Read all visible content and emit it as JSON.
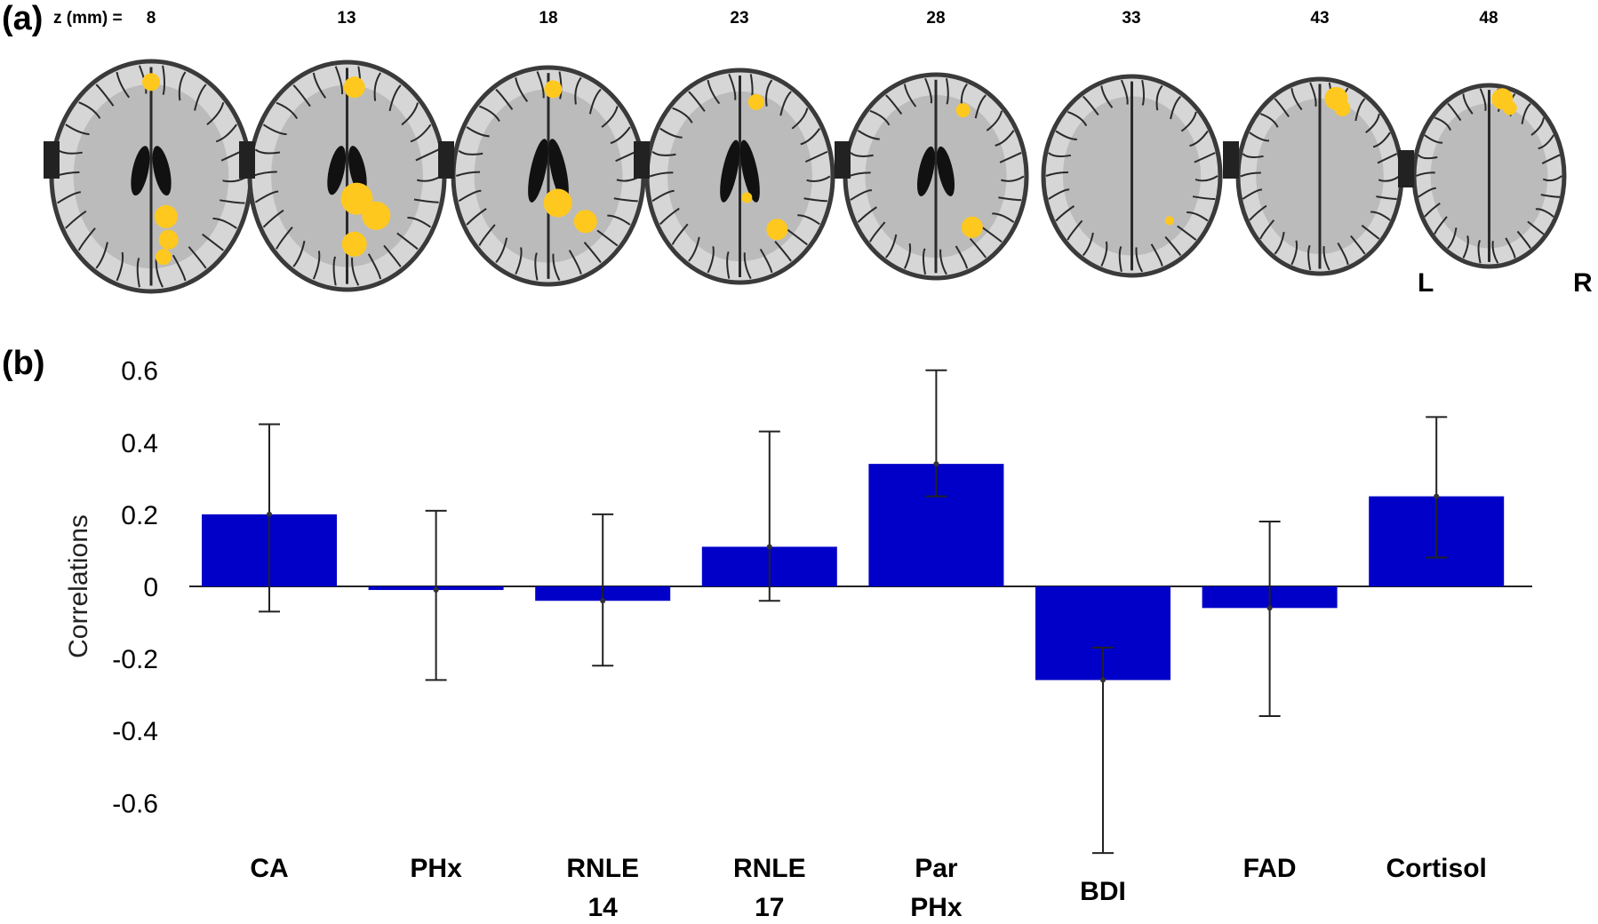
{
  "panel_a": {
    "label": "(a)",
    "z_unit_label": "z (mm) =",
    "slices": [
      "8",
      "13",
      "18",
      "23",
      "28",
      "33",
      "43",
      "48"
    ],
    "orientation_left": "L",
    "orientation_right": "R",
    "colors": {
      "activation": "#ffc81e",
      "brain_gray": "#a6a6a6",
      "sulci": "#2a2a2a"
    }
  },
  "panel_b": {
    "label": "(b)"
  },
  "chart_data": {
    "type": "bar",
    "categories": [
      "CA",
      "PHx",
      "RNLE 14",
      "RNLE 17",
      "Par PHx",
      "BDI",
      "FAD",
      "Cortisol"
    ],
    "category_lines": [
      [
        "CA"
      ],
      [
        "PHx"
      ],
      [
        "RNLE",
        "14"
      ],
      [
        "RNLE",
        "17"
      ],
      [
        "Par",
        "PHx"
      ],
      [
        "BDI"
      ],
      [
        "FAD"
      ],
      [
        "Cortisol"
      ]
    ],
    "values": [
      0.2,
      -0.01,
      -0.04,
      0.11,
      0.34,
      -0.26,
      -0.06,
      0.25
    ],
    "error_upper": [
      0.45,
      0.21,
      0.2,
      0.43,
      0.6,
      -0.17,
      0.18,
      0.47
    ],
    "error_lower": [
      -0.07,
      -0.26,
      -0.22,
      -0.04,
      0.25,
      -0.74,
      -0.36,
      0.08
    ],
    "ylabel": "Correlations",
    "ylim": [
      -0.7,
      0.65
    ],
    "yticks": [
      0.6,
      0.4,
      0.2,
      0,
      -0.2,
      -0.4,
      -0.6
    ],
    "ytick_labels": [
      "0.6",
      "0.4",
      "0.2",
      "0",
      "-0.2",
      "-0.4",
      "-0.6"
    ],
    "bar_color": "#0000c8",
    "grid": false
  }
}
